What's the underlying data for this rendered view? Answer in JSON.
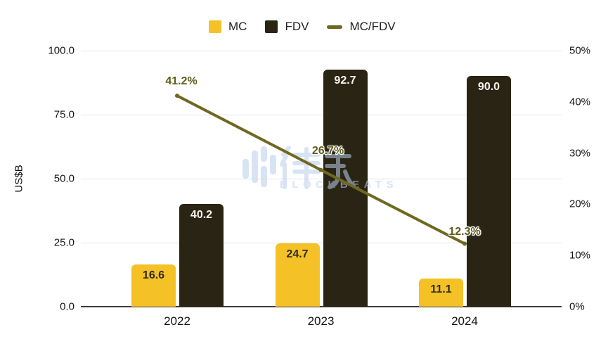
{
  "chart_data": {
    "type": "combo-bar-line",
    "categories": [
      "2022",
      "2023",
      "2024"
    ],
    "series": [
      {
        "name": "MC",
        "type": "bar",
        "axis": "left",
        "color": "#F4C227",
        "values": [
          16.6,
          24.7,
          11.1
        ],
        "labels": [
          "16.6",
          "24.7",
          "11.1"
        ]
      },
      {
        "name": "FDV",
        "type": "bar",
        "axis": "left",
        "color": "#2A2415",
        "values": [
          40.2,
          92.7,
          90.0
        ],
        "labels": [
          "40.2",
          "92.7",
          "90.0"
        ]
      },
      {
        "name": "MC/FDV",
        "type": "line",
        "axis": "right",
        "color": "#6F6820",
        "values": [
          41.2,
          26.7,
          12.3
        ],
        "labels": [
          "41.2%",
          "26.7%",
          "12.3%"
        ]
      }
    ],
    "left_axis": {
      "title": "US$B",
      "min": 0,
      "max": 100,
      "tick_values": [
        0,
        25,
        50,
        75,
        100
      ],
      "tick_labels": [
        "0.0",
        "25.0",
        "50.0",
        "75.0",
        "100.0"
      ]
    },
    "right_axis": {
      "min": 0,
      "max": 50,
      "tick_values": [
        0,
        10,
        20,
        30,
        40,
        50
      ],
      "tick_labels": [
        "0%",
        "10%",
        "20%",
        "30%",
        "40%",
        "50%"
      ]
    },
    "legend": {
      "position": "top",
      "entries": [
        "MC",
        "FDV",
        "MC/FDV"
      ]
    },
    "grid": true
  },
  "watermark": {
    "text": "BLOCKBEATS",
    "chars": "律动"
  },
  "colors": {
    "mc": "#F4C227",
    "fdv": "#2A2415",
    "line": "#6F6820",
    "grid": "#E4E4E4",
    "axis": "#3C3C3C",
    "bar_label_dark": "#2F2B20",
    "bar_label_light": "#F7F5EE",
    "pct_label": "#5F5C1E",
    "watermark": "#B9CFEC"
  }
}
